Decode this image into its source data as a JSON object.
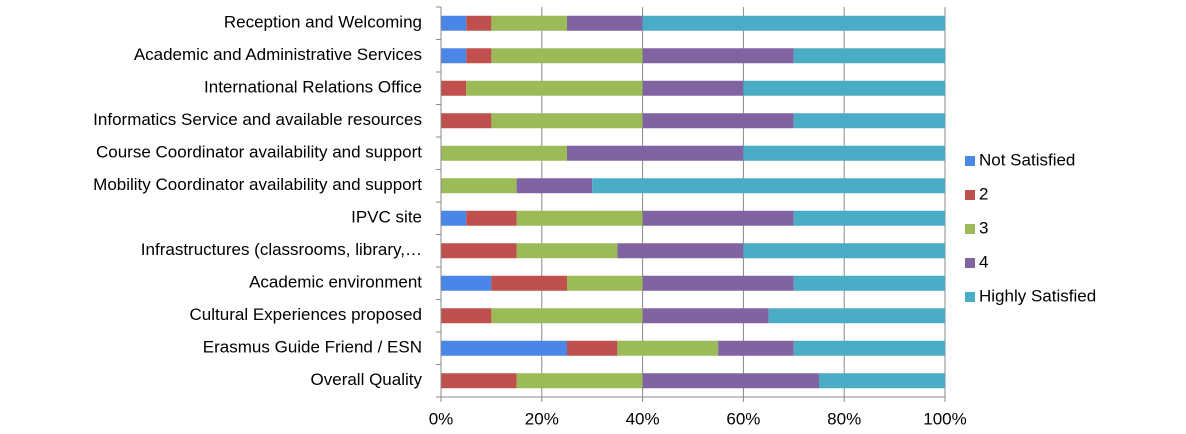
{
  "chart_data": {
    "type": "stacked-bar-horizontal",
    "categories": [
      "Reception and Welcoming",
      "Academic and Administrative Services",
      "International Relations Office",
      "Informatics Service and available resources",
      "Course Coordinator availability and support",
      "Mobility Coordinator availability and support",
      "IPVC site",
      "Infrastructures (classrooms, library,…",
      "Academic environment",
      "Cultural Experiences proposed",
      "Erasmus Guide Friend / ESN",
      "Overall Quality"
    ],
    "series": [
      {
        "name": "Not Satisfied",
        "color": "#4a86e8",
        "values": [
          5,
          5,
          0,
          0,
          0,
          0,
          5,
          0,
          10,
          0,
          25,
          0
        ]
      },
      {
        "name": "2",
        "color": "#c0504d",
        "values": [
          5,
          5,
          5,
          10,
          0,
          0,
          10,
          15,
          15,
          10,
          10,
          15
        ]
      },
      {
        "name": "3",
        "color": "#9bbb59",
        "values": [
          15,
          30,
          35,
          30,
          25,
          15,
          25,
          20,
          15,
          30,
          20,
          25
        ]
      },
      {
        "name": "4",
        "color": "#8064a2",
        "values": [
          15,
          30,
          20,
          30,
          35,
          15,
          30,
          25,
          30,
          25,
          15,
          35
        ]
      },
      {
        "name": "Highly Satisfied",
        "color": "#4bacc6",
        "values": [
          60,
          30,
          40,
          30,
          40,
          70,
          30,
          40,
          30,
          35,
          30,
          25
        ]
      }
    ],
    "xlim": [
      0,
      100
    ],
    "xticks": [
      {
        "value": 0,
        "label": "0%"
      },
      {
        "value": 20,
        "label": "20%"
      },
      {
        "value": 40,
        "label": "40%"
      },
      {
        "value": 60,
        "label": "60%"
      },
      {
        "value": 80,
        "label": "80%"
      },
      {
        "value": 100,
        "label": "100%"
      }
    ],
    "grid": true,
    "legend": "right"
  }
}
